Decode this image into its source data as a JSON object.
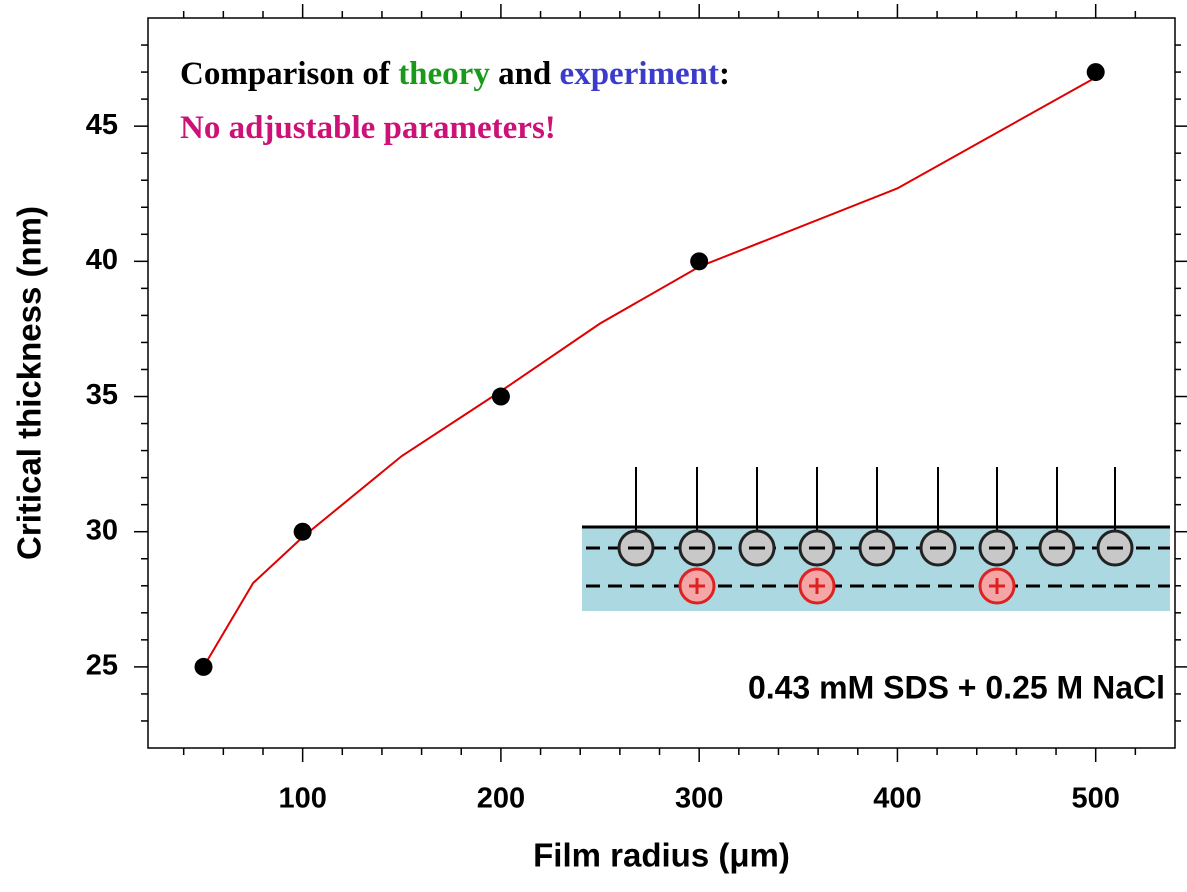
{
  "chart_data": {
    "type": "scatter",
    "x_label": "Film radius (μm)",
    "y_label": "Critical thickness (nm)",
    "xlim": [
      22,
      540
    ],
    "ylim": [
      22,
      49
    ],
    "xticks": [
      100,
      200,
      300,
      400,
      500
    ],
    "yticks": [
      25,
      30,
      35,
      40,
      45
    ],
    "xminorticks": [
      40,
      60,
      80,
      120,
      140,
      160,
      180,
      220,
      240,
      260,
      280,
      320,
      340,
      360,
      380,
      420,
      440,
      460,
      480,
      520
    ],
    "yminorticks": [
      23,
      24,
      26,
      27,
      28,
      29,
      31,
      32,
      33,
      34,
      36,
      37,
      38,
      39,
      41,
      42,
      43,
      44,
      46,
      47,
      48
    ],
    "series": [
      {
        "type": "scatter",
        "color": "#000000",
        "x": [
          50,
          100,
          200,
          300,
          500
        ],
        "values": [
          25,
          30,
          35,
          40,
          47
        ]
      },
      {
        "type": "line",
        "color": "#e00000",
        "x": [
          50,
          75,
          100,
          150,
          200,
          250,
          300,
          400,
          500
        ],
        "values": [
          25,
          28.1,
          29.8,
          32.8,
          35.2,
          37.7,
          39.8,
          42.7,
          46.8
        ]
      }
    ],
    "annotations": [
      {
        "parts": [
          {
            "text": "Comparison of ",
            "color": "#000000"
          },
          {
            "text": "theory",
            "color": "#1a9a1a"
          },
          {
            "text": " and ",
            "color": "#000000"
          },
          {
            "text": "experiment",
            "color": "#3c3ccc"
          },
          {
            "text": ":",
            "color": "#000000"
          }
        ]
      },
      {
        "parts": [
          {
            "text": "No adjustable parameters!",
            "color": "#cc1177"
          }
        ]
      }
    ],
    "inset_label": "0.43 mM SDS + 0.25 M NaCl"
  }
}
